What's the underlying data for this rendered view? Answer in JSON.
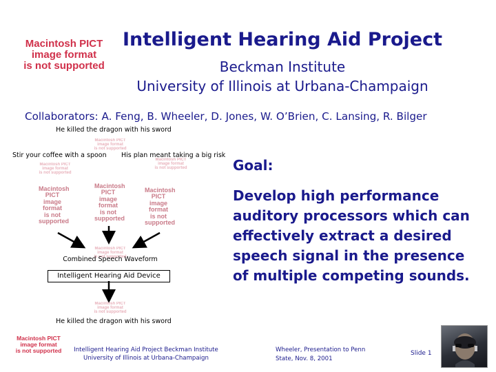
{
  "header": {
    "title": "Intelligent Hearing Aid Project",
    "institute": "Beckman Institute",
    "university": "University of Illinois at Urbana-Champaign",
    "collaborators": "Collaborators: A. Feng, B. Wheeler, D. Jones, W. O’Brien, C. Lansing, R. Bilger"
  },
  "placeholder": {
    "line1": "Macintosh PICT",
    "line2": "image format",
    "line3": "is not supported"
  },
  "diagram": {
    "top_sentence": "He killed the dragon with his sword",
    "left_sentence": "Stir your coffee with a spoon",
    "right_sentence": "His plan meant taking a big risk",
    "combined_label": "Combined Speech Waveform",
    "device_label": "Intelligent Hearing Aid Device",
    "bottom_sentence": "He killed the dragon with his sword"
  },
  "goal": {
    "heading": "Goal:",
    "body": "Develop high performance auditory processors which can effectively extract a desired speech signal in the presence of multiple competing sounds."
  },
  "footer": {
    "project_line1": "Intelligent Hearing Aid Project Beckman Institute",
    "project_line2": "University of Illinois at Urbana-Champaign",
    "presenter_line1": "Wheeler, Presentation to Penn",
    "presenter_line2": "State, Nov. 8, 2001",
    "slide_label": "Slide 1"
  },
  "colors": {
    "text_navy": "#1a1a8c",
    "placeholder_red": "#d0304a"
  }
}
